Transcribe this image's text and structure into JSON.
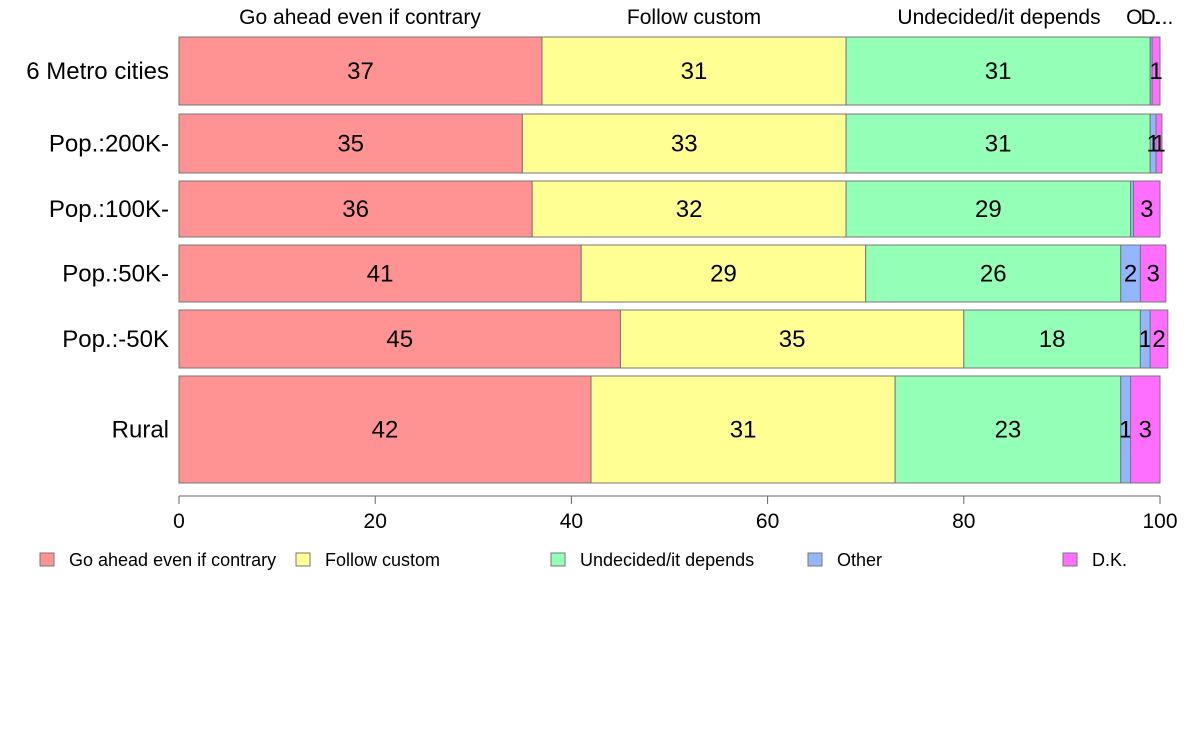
{
  "chart_data": {
    "type": "bar",
    "orientation": "horizontal",
    "stacked": true,
    "categories": [
      "6 Metro cities",
      "Pop.:200K-",
      "Pop.:100K-",
      "Pop.:50K-",
      "Pop.:-50K",
      "Rural"
    ],
    "series": [
      {
        "name": "Go ahead even if contrary",
        "color": "#ff9393",
        "values": [
          37,
          35,
          36,
          41,
          45,
          42
        ],
        "labels": [
          "37",
          "35",
          "36",
          "41",
          "45",
          "42"
        ]
      },
      {
        "name": "Follow custom",
        "color": "#ffff93",
        "values": [
          31,
          33,
          32,
          29,
          35,
          31
        ],
        "labels": [
          "31",
          "33",
          "32",
          "29",
          "35",
          "31"
        ]
      },
      {
        "name": "Undecided/it depends",
        "color": "#93ffb7",
        "values": [
          31,
          31,
          29,
          26,
          18,
          23
        ],
        "labels": [
          "31",
          "31",
          "29",
          "26",
          "18",
          "23"
        ]
      },
      {
        "name": "Other",
        "color": "#93b7ff",
        "values": [
          0.2,
          0.6,
          0.3,
          2,
          1,
          1
        ],
        "labels": [
          "",
          "1",
          "",
          "2",
          "1",
          "1"
        ]
      },
      {
        "name": "D.K.",
        "color": "#ff6fff",
        "values": [
          0.8,
          0.6,
          2.7,
          2.6,
          1.8,
          3
        ],
        "labels": [
          "1",
          "1",
          "3",
          "3",
          "2",
          "3"
        ]
      }
    ],
    "column_headers": [
      "Go ahead even if contrary",
      "Follow custom",
      "Undecided/it depends",
      "O...",
      "D..."
    ],
    "xlim": [
      0,
      100
    ],
    "xticks": [
      "0",
      "20",
      "40",
      "60",
      "80",
      "100"
    ],
    "legend_position": "bottom",
    "grid": false
  }
}
